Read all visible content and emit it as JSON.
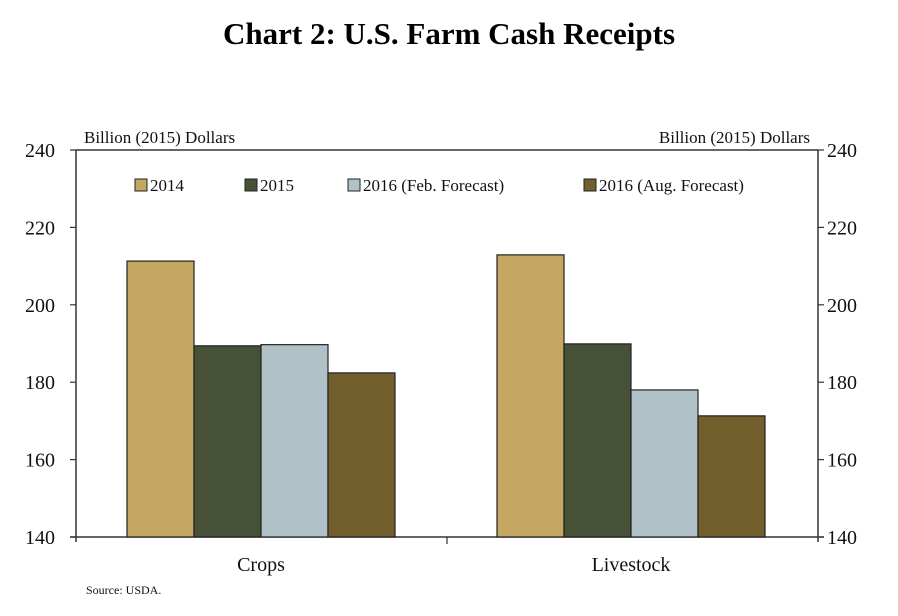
{
  "chart_data": {
    "type": "bar",
    "title": "Chart 2: U.S. Farm Cash Receipts",
    "ylabel_left": "Billion (2015) Dollars",
    "ylabel_right": "Billion (2015) Dollars",
    "xlabel": "",
    "ylim": [
      140,
      240
    ],
    "yticks": [
      140,
      160,
      180,
      200,
      220,
      240
    ],
    "categories": [
      "Crops",
      "Livestock"
    ],
    "series": [
      {
        "name": "2014",
        "color": "#c4a862",
        "values": [
          211.3,
          212.9
        ]
      },
      {
        "name": "2015",
        "color": "#465138",
        "values": [
          189.4,
          189.9
        ]
      },
      {
        "name": "2016 (Feb. Forecast)",
        "color": "#b0c2c7",
        "values": [
          189.7,
          178.0
        ]
      },
      {
        "name": "2016 (Aug. Forecast)",
        "color": "#735e2d",
        "values": [
          182.4,
          171.3
        ]
      }
    ],
    "legend_position": "top",
    "grid": false,
    "source": "Source: USDA."
  }
}
